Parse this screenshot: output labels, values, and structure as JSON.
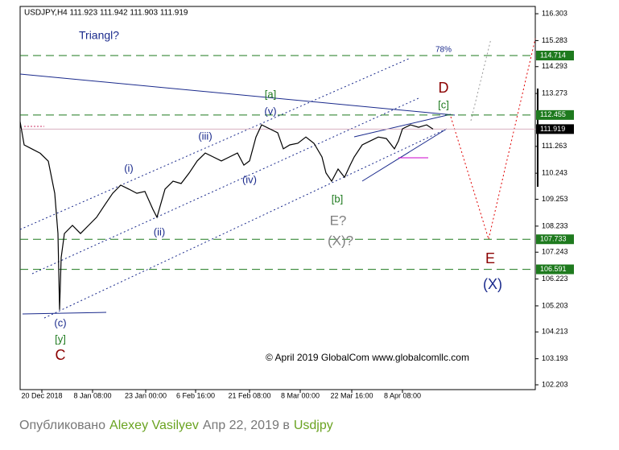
{
  "chart_data": {
    "type": "line",
    "title": "USDJPY,H4  111.923 111.942 111.903 111.919",
    "x": [
      0,
      5,
      15,
      25,
      35,
      43,
      47,
      49,
      51,
      55,
      65,
      75,
      85,
      95,
      105,
      115,
      125,
      135,
      145,
      155,
      165,
      170,
      180,
      190,
      200,
      210,
      220,
      230,
      240,
      250,
      260,
      270,
      278,
      285,
      293,
      300,
      310,
      320,
      327,
      335,
      345,
      355,
      365,
      375,
      380,
      387,
      395,
      403,
      410,
      415,
      425,
      435,
      445,
      455,
      465,
      470,
      475,
      485,
      495,
      505,
      513
    ],
    "values": [
      112.2,
      111.32,
      111.16,
      111.0,
      110.7,
      109.48,
      107.95,
      105.05,
      107.04,
      107.95,
      108.26,
      107.95,
      108.26,
      108.57,
      109.03,
      109.48,
      109.79,
      109.64,
      109.48,
      109.55,
      108.87,
      108.57,
      109.64,
      109.94,
      109.85,
      110.25,
      110.71,
      111.01,
      110.86,
      110.71,
      110.86,
      111.01,
      110.55,
      110.71,
      111.62,
      112.08,
      111.93,
      111.78,
      111.17,
      111.32,
      111.38,
      111.62,
      111.38,
      110.86,
      110.25,
      109.94,
      110.4,
      110.09,
      110.55,
      110.86,
      111.32,
      111.47,
      111.62,
      111.56,
      111.17,
      111.47,
      111.93,
      112.08,
      111.99,
      112.08,
      111.919
    ],
    "color": "#000000",
    "xlim": [
      0,
      640
    ],
    "xticks": [
      {
        "value": 27,
        "label": "20 Dec 2018"
      },
      {
        "value": 90,
        "label": "8 Jan 08:00"
      },
      {
        "value": 156,
        "label": "23 Jan 00:00"
      },
      {
        "value": 218,
        "label": "6 Feb 16:00"
      },
      {
        "value": 285,
        "label": "21 Feb 08:00"
      },
      {
        "value": 348,
        "label": "8 Mar 00:00"
      },
      {
        "value": 412,
        "label": "22 Mar 16:00"
      },
      {
        "value": 475,
        "label": "8 Apr 08:00"
      }
    ],
    "ylim": [
      102.02,
      116.58
    ],
    "yticks": [
      116.303,
      115.283,
      114.293,
      113.273,
      111.263,
      110.243,
      109.253,
      108.233,
      107.243,
      106.223,
      105.203,
      104.213,
      103.193,
      102.203
    ],
    "levels": [
      114.714,
      112.455,
      107.733,
      106.591
    ],
    "level_color": "#1e7a1e",
    "last_price": 111.919,
    "annotations": [
      {
        "text": "Triangl?",
        "color": "#1a2a8c"
      },
      {
        "text": "78%",
        "color": "#1a2a8c"
      },
      {
        "text": "D",
        "color": "#8b0000"
      },
      {
        "text": "[c]",
        "color": "#1e7a1e"
      },
      {
        "text": "[a]",
        "color": "#1e7a1e"
      },
      {
        "text": "(v)",
        "color": "#1a2a8c"
      },
      {
        "text": "(iii)",
        "color": "#1a2a8c"
      },
      {
        "text": "(i)",
        "color": "#1a2a8c"
      },
      {
        "text": "(iv)",
        "color": "#1a2a8c"
      },
      {
        "text": "(ii)",
        "color": "#1a2a8c"
      },
      {
        "text": "[b]",
        "color": "#1e7a1e"
      },
      {
        "text": "E?",
        "color": "#808080"
      },
      {
        "text": "(X)?",
        "color": "#808080"
      },
      {
        "text": "E",
        "color": "#8b0000"
      },
      {
        "text": "(X)",
        "color": "#1a2a8c"
      },
      {
        "text": "(c)",
        "color": "#1a2a8c"
      },
      {
        "text": "[y]",
        "color": "#1e7a1e"
      },
      {
        "text": "C",
        "color": "#8b0000"
      },
      {
        "text": "© April 2019 GlobalCom www.globalcomllc.com",
        "color": "#000000"
      }
    ]
  },
  "footer": {
    "label": "Опубликовано",
    "author": "Alexey Vasilyev",
    "date": "Апр 22, 2019 в",
    "symbol": "Usdjpy"
  }
}
